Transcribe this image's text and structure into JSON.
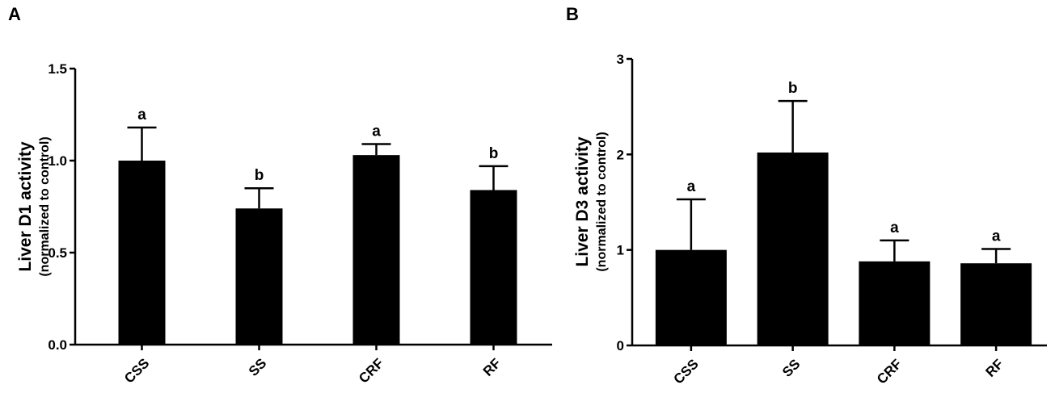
{
  "chart_data": [
    {
      "type": "bar",
      "panel": "A",
      "categories": [
        "CSS",
        "SS",
        "CRF",
        "RF"
      ],
      "values": [
        1.0,
        0.74,
        1.03,
        0.84
      ],
      "errors": [
        0.18,
        0.11,
        0.06,
        0.13
      ],
      "letters": [
        "a",
        "b",
        "a",
        "b"
      ],
      "ylabel": "Liver D1 activity",
      "ylabel_sub": "(normalized to control)",
      "ylim": [
        0,
        1.5
      ],
      "yticks": [
        0.0,
        0.5,
        1.0,
        1.5
      ],
      "ytick_labels": [
        "0.0",
        "0.5",
        "1.0",
        "1.5"
      ],
      "bar_color": "#000000"
    },
    {
      "type": "bar",
      "panel": "B",
      "categories": [
        "CSS",
        "SS",
        "CRF",
        "RF"
      ],
      "values": [
        1.0,
        2.02,
        0.88,
        0.86
      ],
      "errors": [
        0.53,
        0.54,
        0.22,
        0.15
      ],
      "letters": [
        "a",
        "b",
        "a",
        "a"
      ],
      "ylabel": "Liver D3 activity",
      "ylabel_sub": "(normalized to control)",
      "ylim": [
        0,
        3
      ],
      "yticks": [
        0,
        1,
        2,
        3
      ],
      "ytick_labels": [
        "0",
        "1",
        "2",
        "3"
      ],
      "bar_color": "#000000"
    }
  ]
}
